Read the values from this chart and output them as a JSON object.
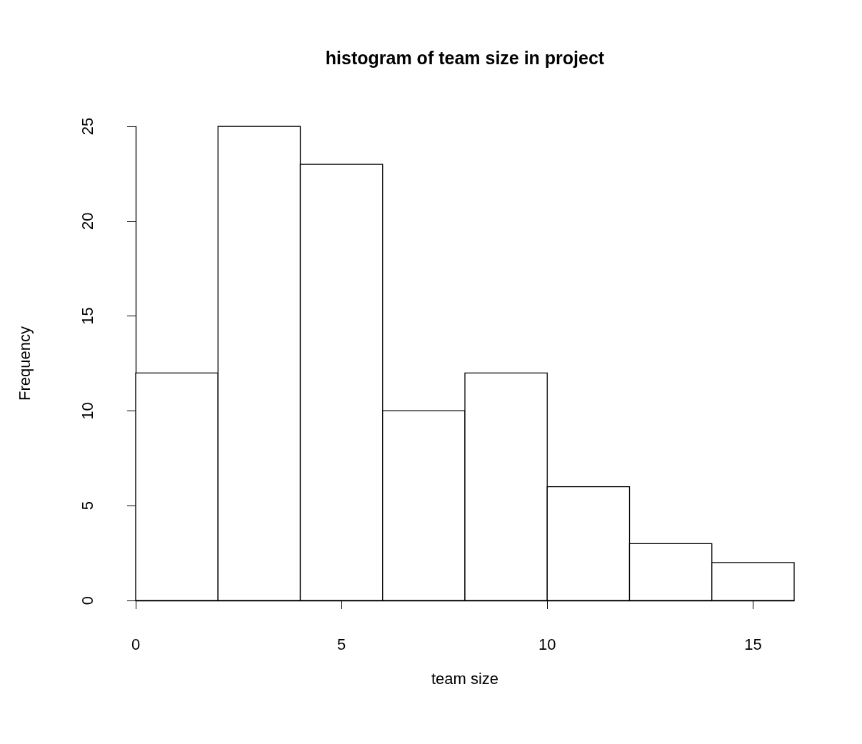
{
  "chart_data": {
    "type": "histogram",
    "title": "histogram of team size in project",
    "xlabel": "team size",
    "ylabel": "Frequency",
    "bins": [
      0,
      2,
      4,
      6,
      8,
      10,
      12,
      14,
      16
    ],
    "values": [
      12,
      25,
      23,
      10,
      12,
      6,
      3,
      2
    ],
    "color": "#ffffff",
    "xlim": [
      0,
      16
    ],
    "xticks": [
      0,
      5,
      10,
      15
    ],
    "ylim": [
      0,
      25
    ],
    "yticks": [
      0,
      5,
      10,
      15,
      20,
      25
    ]
  }
}
